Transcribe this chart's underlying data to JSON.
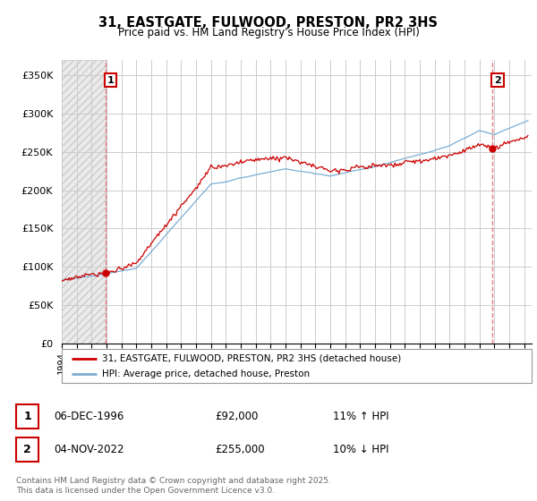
{
  "title": "31, EASTGATE, FULWOOD, PRESTON, PR2 3HS",
  "subtitle": "Price paid vs. HM Land Registry's House Price Index (HPI)",
  "xlim_start": 1994.0,
  "xlim_end": 2025.5,
  "ylim_min": 0,
  "ylim_max": 370000,
  "yticks": [
    0,
    50000,
    100000,
    150000,
    200000,
    250000,
    300000,
    350000
  ],
  "ytick_labels": [
    "£0",
    "£50K",
    "£100K",
    "£150K",
    "£200K",
    "£250K",
    "£300K",
    "£350K"
  ],
  "transaction1_date": 1996.92,
  "transaction1_price": 92000,
  "transaction2_date": 2022.84,
  "transaction2_price": 255000,
  "legend_line1": "31, EASTGATE, FULWOOD, PRESTON, PR2 3HS (detached house)",
  "legend_line2": "HPI: Average price, detached house, Preston",
  "table_row1": [
    "1",
    "06-DEC-1996",
    "£92,000",
    "11% ↑ HPI"
  ],
  "table_row2": [
    "2",
    "04-NOV-2022",
    "£255,000",
    "10% ↓ HPI"
  ],
  "footer": "Contains HM Land Registry data © Crown copyright and database right 2025.\nThis data is licensed under the Open Government Licence v3.0.",
  "line_color_red": "#cc0000",
  "line_color_blue": "#7aadd4",
  "grid_color": "#cccccc",
  "dashed_line_color": "#e87070"
}
